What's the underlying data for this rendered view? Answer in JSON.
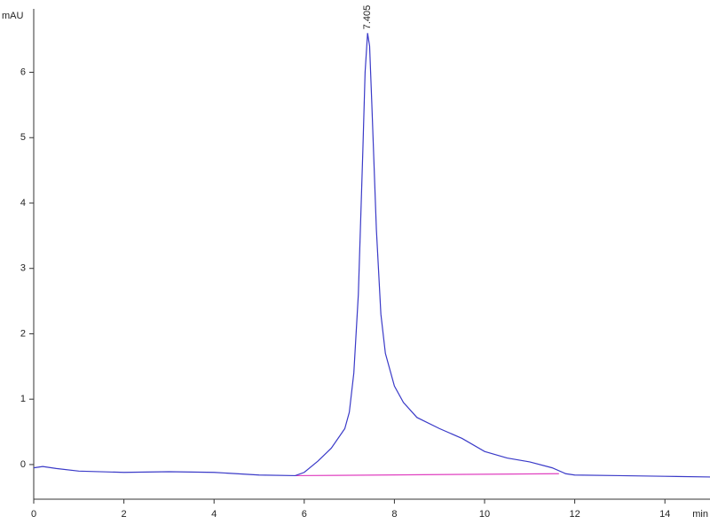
{
  "chart_data": {
    "type": "line",
    "ylabel": "mAU",
    "xlabel": "min",
    "xlim": [
      0,
      15
    ],
    "ylim": [
      -0.53,
      6.97
    ],
    "xticks": [
      0,
      2,
      4,
      6,
      8,
      10,
      12,
      14
    ],
    "yticks": [
      0,
      1,
      2,
      3,
      4,
      5,
      6
    ],
    "grid": false,
    "series": [
      {
        "color": "#3a3ac8",
        "x": [
          0,
          0.2,
          0.5,
          1,
          2,
          3,
          4,
          5,
          5.8,
          6.0,
          6.3,
          6.6,
          6.9,
          7.0,
          7.1,
          7.2,
          7.3,
          7.35,
          7.405,
          7.45,
          7.5,
          7.6,
          7.7,
          7.8,
          8.0,
          8.2,
          8.5,
          9.0,
          9.5,
          10.0,
          10.5,
          11.0,
          11.5,
          11.8,
          12,
          13,
          14,
          15
        ],
        "values": [
          -0.05,
          -0.03,
          -0.06,
          -0.1,
          -0.12,
          -0.11,
          -0.12,
          -0.16,
          -0.17,
          -0.12,
          0.05,
          0.25,
          0.55,
          0.8,
          1.4,
          2.6,
          4.8,
          6.0,
          6.6,
          6.4,
          5.5,
          3.6,
          2.3,
          1.7,
          1.2,
          0.95,
          0.72,
          0.55,
          0.4,
          0.2,
          0.1,
          0.04,
          -0.05,
          -0.14,
          -0.16,
          -0.17,
          -0.18,
          -0.19
        ]
      },
      {
        "color": "#e040c0",
        "x": [
          5.8,
          11.65
        ],
        "values": [
          -0.17,
          -0.14
        ]
      }
    ],
    "annotations": [
      {
        "x": 7.405,
        "y": 6.6
      }
    ]
  }
}
